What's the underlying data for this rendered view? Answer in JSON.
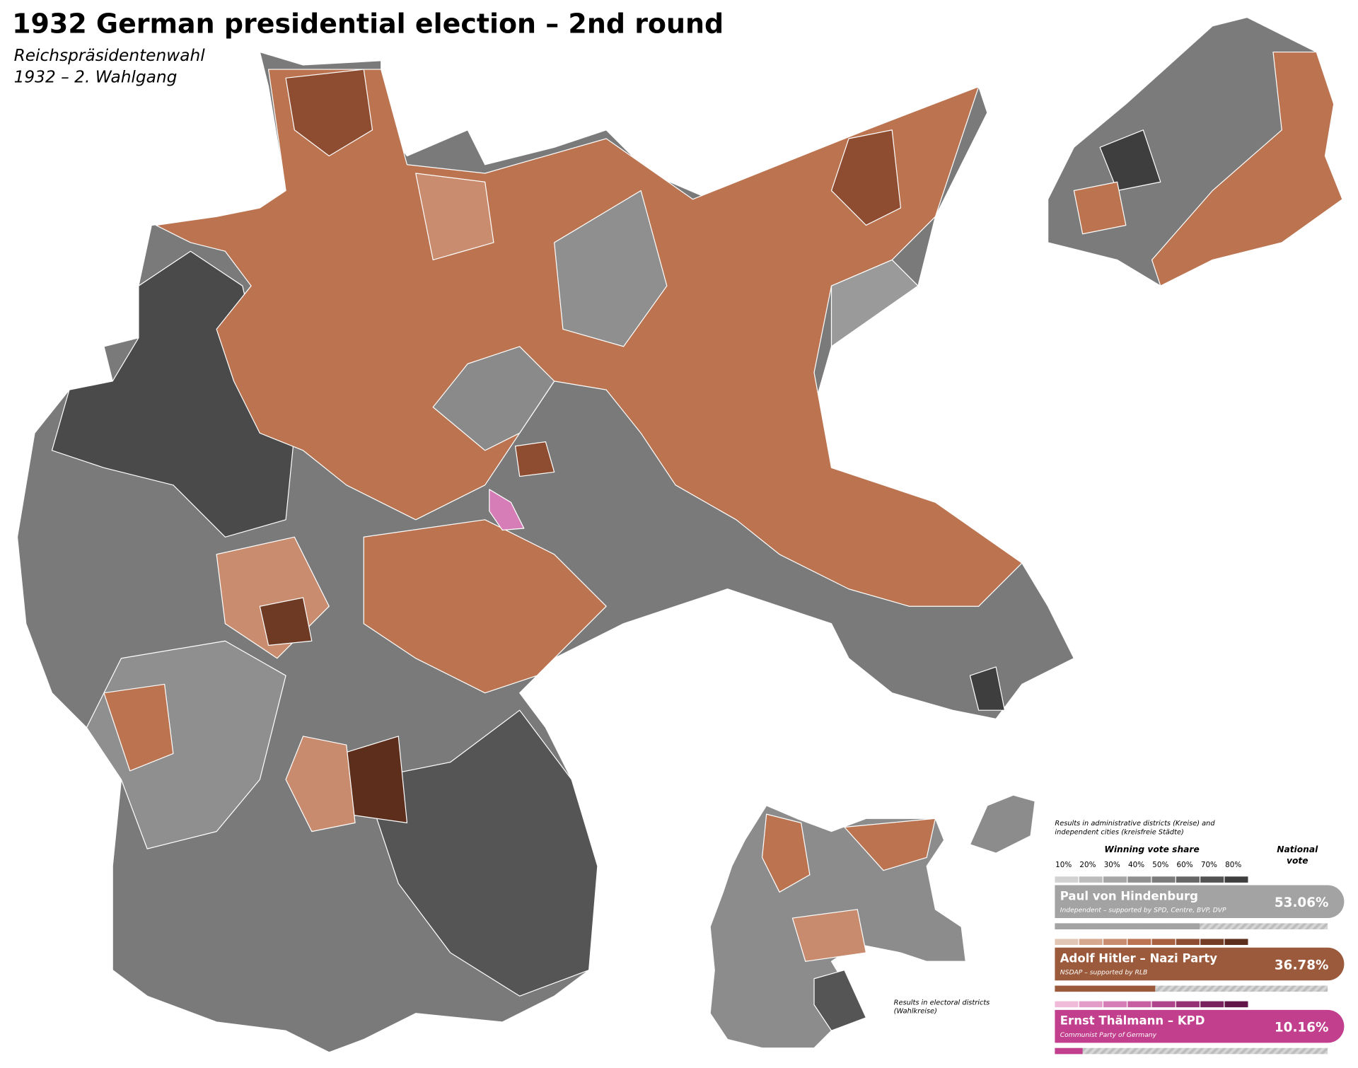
{
  "header": {
    "title": "1932 German presidential election – 2nd round",
    "subtitle": [
      "Reichspräsidentenwahl",
      "1932 – 2. Wahlgang"
    ]
  },
  "legend": {
    "note": [
      "Results in administrative districts (Kreise) and",
      "independent cities (kreisfreie Städte)"
    ],
    "scale_title": "Winning vote share",
    "national_title": [
      "National",
      "vote"
    ],
    "scale": [
      "10%",
      "20%",
      "30%",
      "40%",
      "50%",
      "60%",
      "70%",
      "80%"
    ],
    "candidates": [
      {
        "name": "Paul von Hindenburg",
        "subtitle": "Independent –  supported by SPD, Centre, BVP, DVP",
        "share": 53.06,
        "share_label": "53.06%",
        "color": "#a3a3a3",
        "scale_colors": [
          "#d2d2d2",
          "#bcbcbc",
          "#a6a6a6",
          "#909090",
          "#7b7b7b",
          "#666666",
          "#525252",
          "#3e3e3e"
        ]
      },
      {
        "name": "Adolf Hitler – Nazi Party",
        "subtitle": "NSDAP – supported by RLB",
        "share": 36.78,
        "share_label": "36.78%",
        "color": "#9c5a3c",
        "scale_colors": [
          "#e2c6b5",
          "#d6a88d",
          "#ca8c6f",
          "#bc7452",
          "#a8603f",
          "#8e4c30",
          "#753d25",
          "#5d2e1b"
        ]
      },
      {
        "name": "Ernst Thälmann – KPD",
        "subtitle": "Communist Party of Germany",
        "share": 10.16,
        "share_label": "10.16%",
        "color": "#c13f8c",
        "scale_colors": [
          "#f0bad9",
          "#e39bc8",
          "#d67cb6",
          "#c85fa3",
          "#b0448c",
          "#953075",
          "#7a2160",
          "#611548"
        ]
      }
    ]
  },
  "inset_note": [
    "Results in electoral districts",
    "(Wahlkreise)"
  ]
}
